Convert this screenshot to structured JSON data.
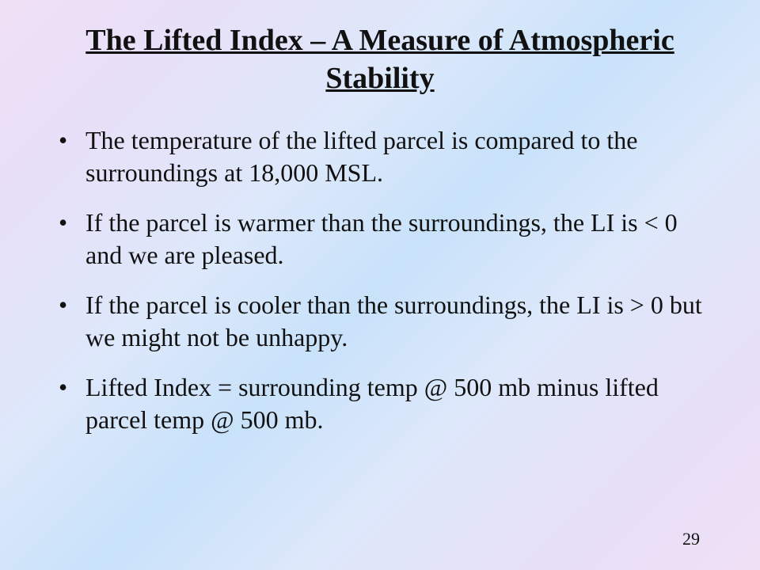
{
  "slide": {
    "title": "The Lifted Index – A Measure of Atmospheric Stability",
    "bullets": [
      "The temperature of the lifted parcel is compared to the surroundings at 18,000 MSL.",
      "If the parcel is warmer than the surroundings, the LI is < 0 and we are pleased.",
      "If the parcel is cooler than the surroundings, the LI is > 0 but we might not be unhappy.",
      "Lifted Index = surrounding temp @ 500 mb minus lifted parcel temp @ 500 mb."
    ],
    "page_number": "29"
  },
  "style": {
    "background_gradient": [
      "#f0e0f5",
      "#e8e0f8",
      "#dde8fb",
      "#c8e2fa",
      "#dde8fb",
      "#e8e0f8",
      "#f0e0f5"
    ],
    "title_fontsize": 38,
    "title_weight": "bold",
    "title_underline": true,
    "body_fontsize": 32,
    "font_family": "Times New Roman",
    "text_color": "#111111",
    "bullet_marker": "•",
    "page_number_fontsize": 22
  }
}
